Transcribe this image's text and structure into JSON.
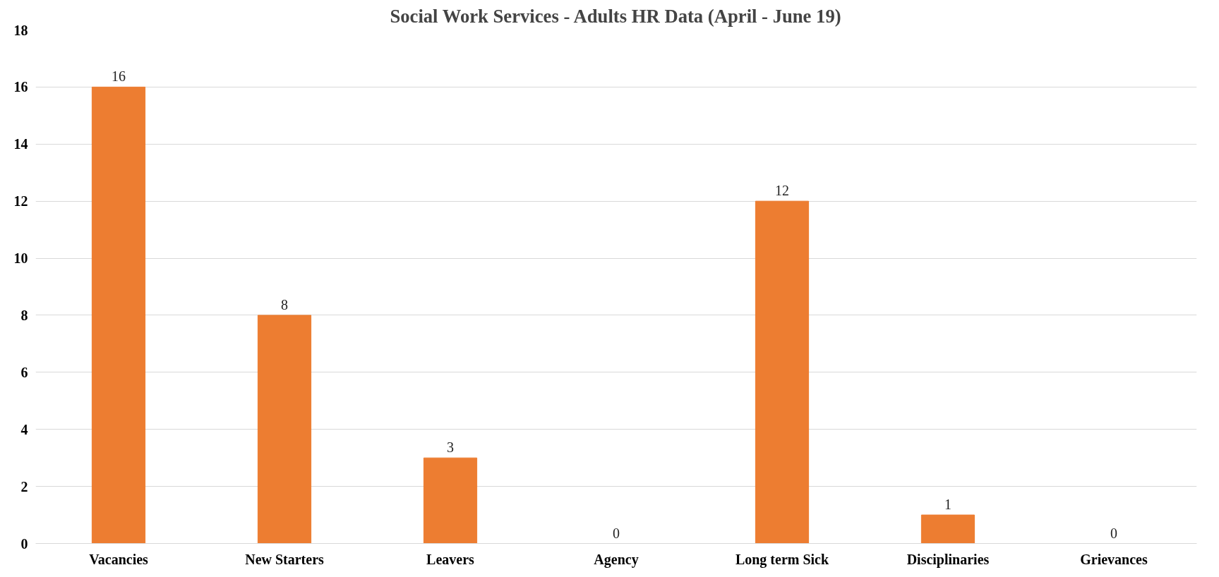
{
  "chart_data": {
    "type": "bar",
    "title": "Social Work Services - Adults HR Data (April - June 19)",
    "categories": [
      "Vacancies",
      "New Starters",
      "Leavers",
      "Agency",
      "Long term Sick",
      "Disciplinaries",
      "Grievances"
    ],
    "values": [
      16,
      8,
      3,
      0,
      12,
      1,
      0
    ],
    "color": "#ed7d31",
    "ylim": [
      0,
      18
    ],
    "yticks": [
      0,
      2,
      4,
      6,
      8,
      10,
      12,
      14,
      16,
      18
    ],
    "grid": "y",
    "data_labels": true
  }
}
